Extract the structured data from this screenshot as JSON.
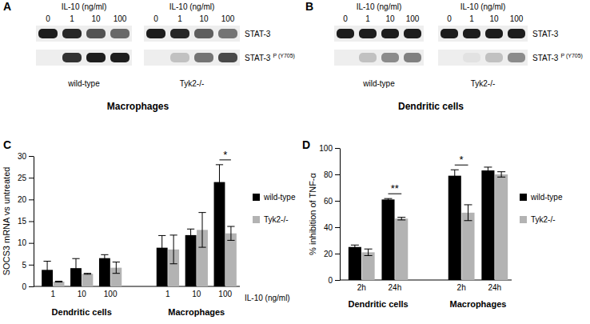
{
  "blots": [
    {
      "panel": "A",
      "cell_type": "Macrophages",
      "groups": [
        {
          "header": "IL-10 (ng/ml)",
          "name": "wild-type",
          "lanes": [
            "0",
            "1",
            "10",
            "100"
          ]
        },
        {
          "header": "IL-10 (ng/ml)",
          "name": "Tyk2-/-",
          "lanes": [
            "0",
            "1",
            "10",
            "100"
          ]
        }
      ],
      "rows": [
        {
          "label": "STAT-3",
          "intensity": [
            [
              0.95,
              0.9,
              0.7,
              0.6
            ],
            [
              0.95,
              0.9,
              0.65,
              0.55
            ]
          ]
        },
        {
          "label": "STAT-3",
          "superscript": "P (Y705)",
          "intensity": [
            [
              0,
              0.85,
              0.95,
              0.95
            ],
            [
              0,
              0.2,
              0.55,
              0.75
            ]
          ]
        }
      ]
    },
    {
      "panel": "B",
      "cell_type": "Dendritic cells",
      "groups": [
        {
          "header": "IL-10 (ng/ml)",
          "name": "wild-type",
          "lanes": [
            "0",
            "1",
            "10",
            "100"
          ]
        },
        {
          "header": "IL-10 (ng/ml)",
          "name": "Tyk2-/-",
          "lanes": [
            "0",
            "1",
            "10",
            "100"
          ]
        }
      ],
      "rows": [
        {
          "label": "STAT-3",
          "intensity": [
            [
              0.95,
              0.95,
              0.95,
              0.95
            ],
            [
              0.95,
              0.95,
              0.95,
              0.95
            ]
          ]
        },
        {
          "label": "STAT-3",
          "superscript": "P (Y705)",
          "intensity": [
            [
              0,
              0.2,
              0.45,
              0.5
            ],
            [
              0,
              0.05,
              0.2,
              0.45
            ]
          ]
        }
      ]
    }
  ],
  "chart_data": [
    {
      "type": "bar",
      "panel": "C",
      "y_label": "SOCS3 mRNA vs untreated",
      "x_label": "IL-10 (ng/ml)",
      "categories": [
        "1",
        "10",
        "100",
        "1",
        "10",
        "100"
      ],
      "groups": [
        {
          "label": "Dendritic cells",
          "size": 3
        },
        {
          "label": "Macrophages",
          "size": 3
        }
      ],
      "series": [
        {
          "name": "wild-type",
          "color": "#000000",
          "values": [
            3.8,
            4.2,
            6.5,
            8.9,
            11.8,
            24.0
          ],
          "errors": [
            2.0,
            2.2,
            0.8,
            2.8,
            1.4,
            4.0
          ]
        },
        {
          "name": "Tyk2-/-",
          "color": "#b3b3b3",
          "values": [
            1.1,
            2.9,
            4.3,
            8.5,
            13.0,
            12.2
          ],
          "errors": [
            0.1,
            0.1,
            1.3,
            3.3,
            4.0,
            1.6
          ]
        }
      ],
      "ylim": [
        0,
        30
      ],
      "yticks": [
        0,
        5,
        10,
        15,
        20,
        25,
        30
      ],
      "annotations": [
        {
          "text": "*",
          "category": 5
        }
      ],
      "legend": "right"
    },
    {
      "type": "bar",
      "panel": "D",
      "y_label": "% inhibition of TNF-α",
      "categories": [
        "2h",
        "24h",
        "2h",
        "24h"
      ],
      "groups": [
        {
          "label": "Dendritic cells",
          "size": 2
        },
        {
          "label": "Macrophages",
          "size": 2
        }
      ],
      "series": [
        {
          "name": "wild-type",
          "color": "#000000",
          "values": [
            25,
            61,
            79,
            83
          ],
          "errors": [
            1.5,
            0.7,
            4.5,
            2.5
          ]
        },
        {
          "name": "Tyk2-/-",
          "color": "#b3b3b3",
          "values": [
            21,
            46.5,
            51,
            80
          ],
          "errors": [
            2.5,
            1.0,
            6.0,
            2.0
          ]
        }
      ],
      "ylim": [
        0,
        100
      ],
      "yticks": [
        0,
        20,
        40,
        60,
        80,
        100
      ],
      "annotations": [
        {
          "text": "**",
          "category": 1
        },
        {
          "text": "*",
          "category": 2
        }
      ],
      "legend": "right"
    }
  ]
}
